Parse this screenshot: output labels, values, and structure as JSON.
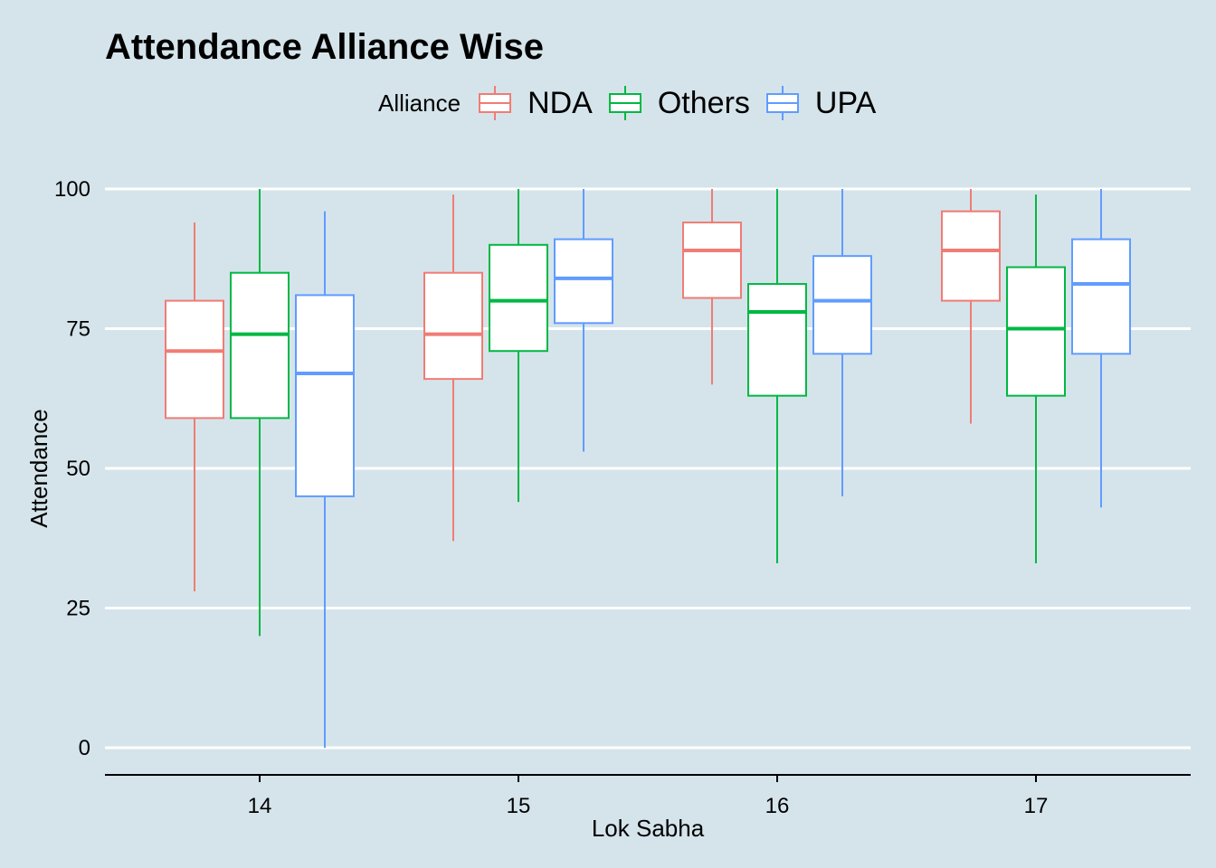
{
  "chart_data": {
    "type": "boxplot",
    "title": "Attendance Alliance Wise",
    "xlabel": "Lok Sabha",
    "ylabel": "Attendance",
    "categories": [
      "14",
      "15",
      "16",
      "17"
    ],
    "ylim": [
      -5,
      105
    ],
    "yticks": [
      0,
      25,
      50,
      75,
      100
    ],
    "grid": "horizontal major",
    "legend": {
      "title": "Alliance",
      "position": "top"
    },
    "series": [
      {
        "name": "NDA",
        "color": "#f07c74",
        "boxes": [
          {
            "min": 28,
            "q1": 59,
            "median": 71,
            "q3": 80,
            "max": 94
          },
          {
            "min": 37,
            "q1": 66,
            "median": 74,
            "q3": 85,
            "max": 99
          },
          {
            "min": 65,
            "q1": 80.5,
            "median": 89,
            "q3": 94,
            "max": 100
          },
          {
            "min": 58,
            "q1": 80,
            "median": 89,
            "q3": 96,
            "max": 100
          }
        ]
      },
      {
        "name": "Others",
        "color": "#00b843",
        "boxes": [
          {
            "min": 20,
            "q1": 59,
            "median": 74,
            "q3": 85,
            "max": 100
          },
          {
            "min": 44,
            "q1": 71,
            "median": 80,
            "q3": 90,
            "max": 100
          },
          {
            "min": 33,
            "q1": 63,
            "median": 78,
            "q3": 83,
            "max": 100
          },
          {
            "min": 33,
            "q1": 63,
            "median": 75,
            "q3": 86,
            "max": 99
          }
        ]
      },
      {
        "name": "UPA",
        "color": "#609cff",
        "boxes": [
          {
            "min": 0,
            "q1": 45,
            "median": 67,
            "q3": 81,
            "max": 96
          },
          {
            "min": 53,
            "q1": 76,
            "median": 84,
            "q3": 91,
            "max": 100
          },
          {
            "min": 45,
            "q1": 70.5,
            "median": 80,
            "q3": 88,
            "max": 100
          },
          {
            "min": 43,
            "q1": 70.5,
            "median": 83,
            "q3": 91,
            "max": 100
          }
        ]
      }
    ]
  }
}
